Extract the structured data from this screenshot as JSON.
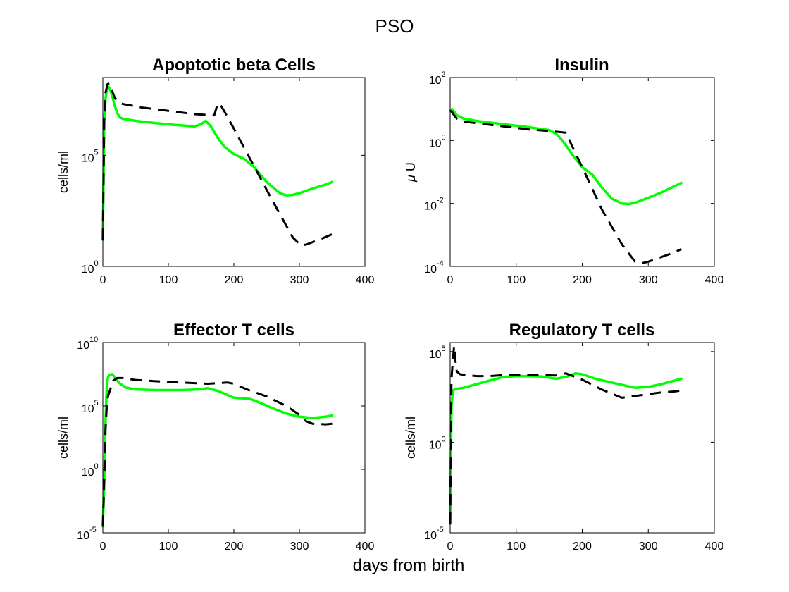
{
  "figure": {
    "title": "PSO",
    "xlabel": "days from birth"
  },
  "colors": {
    "fit": "#00ff00",
    "data": "#000000"
  },
  "chart_data": [
    {
      "type": "line",
      "title": "Apoptotic beta Cells",
      "ylabel": "cells/ml",
      "ylabel_prefix": "",
      "yscale": "log",
      "xlim": [
        0,
        400
      ],
      "ylim_exp": [
        0,
        8.5
      ],
      "xticks": [
        "0",
        "100",
        "200",
        "300",
        "400"
      ],
      "yticks": [
        {
          "base": "10",
          "exp": "0",
          "value_exp": 0
        },
        {
          "base": "10",
          "exp": "5",
          "value_exp": 5
        }
      ],
      "series": [
        {
          "style": "solid",
          "color": "#00ff00",
          "x": [
            0,
            2,
            4,
            6,
            8,
            10,
            12,
            15,
            18,
            22,
            26,
            30,
            50,
            80,
            110,
            140,
            150,
            157,
            165,
            175,
            185,
            200,
            215,
            230,
            250,
            270,
            280,
            290,
            300,
            320,
            340,
            350
          ],
          "y_exp": [
            1.2,
            6.5,
            7.5,
            8.0,
            8.1,
            8.05,
            7.9,
            7.6,
            7.25,
            6.9,
            6.7,
            6.65,
            6.55,
            6.45,
            6.37,
            6.3,
            6.4,
            6.55,
            6.3,
            5.8,
            5.4,
            5.05,
            4.85,
            4.5,
            3.8,
            3.3,
            3.2,
            3.22,
            3.3,
            3.5,
            3.68,
            3.8
          ]
        },
        {
          "style": "dashed",
          "color": "#000000",
          "x": [
            0,
            2,
            4,
            7,
            10,
            13,
            18,
            25,
            32,
            60,
            100,
            140,
            170,
            175,
            178,
            185,
            200,
            230,
            260,
            290,
            302,
            310,
            330,
            350
          ],
          "y_exp": [
            1.2,
            6.5,
            7.8,
            8.2,
            8.25,
            8.0,
            7.6,
            7.35,
            7.3,
            7.15,
            7.0,
            6.85,
            6.8,
            7.3,
            7.35,
            7.0,
            6.2,
            4.55,
            2.9,
            1.3,
            0.95,
            0.98,
            1.2,
            1.45
          ]
        }
      ]
    },
    {
      "type": "line",
      "title": "Insulin",
      "ylabel": "U",
      "ylabel_prefix": "μ",
      "yscale": "log",
      "xlim": [
        0,
        400
      ],
      "ylim_exp": [
        -4,
        2
      ],
      "xticks": [
        "0",
        "100",
        "200",
        "300",
        "400"
      ],
      "yticks": [
        {
          "base": "10",
          "exp": "-4",
          "value_exp": -4
        },
        {
          "base": "10",
          "exp": "-2",
          "value_exp": -2
        },
        {
          "base": "10",
          "exp": "0",
          "value_exp": 0
        },
        {
          "base": "10",
          "exp": "2",
          "value_exp": 2
        }
      ],
      "series": [
        {
          "style": "solid",
          "color": "#00ff00",
          "x": [
            0,
            3,
            6,
            10,
            20,
            40,
            80,
            120,
            150,
            160,
            170,
            185,
            200,
            215,
            230,
            245,
            260,
            270,
            280,
            300,
            320,
            340,
            350
          ],
          "y_exp": [
            0.95,
            1.0,
            0.92,
            0.8,
            0.7,
            0.62,
            0.52,
            0.42,
            0.33,
            0.22,
            0.0,
            -0.45,
            -0.85,
            -1.08,
            -1.5,
            -1.85,
            -2.0,
            -2.02,
            -1.98,
            -1.82,
            -1.65,
            -1.45,
            -1.35
          ]
        },
        {
          "style": "dashed",
          "color": "#000000",
          "x": [
            0,
            3,
            6,
            10,
            20,
            40,
            80,
            120,
            150,
            175,
            200,
            230,
            260,
            280,
            290,
            300,
            320,
            340,
            350
          ],
          "y_exp": [
            0.95,
            0.9,
            0.8,
            0.7,
            0.6,
            0.55,
            0.45,
            0.35,
            0.3,
            0.25,
            -0.85,
            -2.2,
            -3.3,
            -3.85,
            -3.9,
            -3.85,
            -3.7,
            -3.55,
            -3.45
          ]
        }
      ]
    },
    {
      "type": "line",
      "title": "Effector T cells",
      "ylabel": "cells/ml",
      "ylabel_prefix": "",
      "yscale": "log",
      "xlim": [
        0,
        400
      ],
      "ylim_exp": [
        -5,
        10
      ],
      "xticks": [
        "0",
        "100",
        "200",
        "300",
        "400"
      ],
      "yticks": [
        {
          "base": "10",
          "exp": "-5",
          "value_exp": -5
        },
        {
          "base": "10",
          "exp": "0",
          "value_exp": 0
        },
        {
          "base": "10",
          "exp": "5",
          "value_exp": 5
        },
        {
          "base": "10",
          "exp": "10",
          "value_exp": 10
        }
      ],
      "series": [
        {
          "style": "solid",
          "color": "#00ff00",
          "x": [
            0,
            2,
            4,
            6,
            8,
            10,
            14,
            18,
            25,
            35,
            50,
            80,
            120,
            145,
            160,
            175,
            200,
            225,
            240,
            260,
            280,
            300,
            320,
            340,
            350
          ],
          "y_exp": [
            -4.5,
            -1.0,
            3.5,
            6.6,
            7.3,
            7.45,
            7.5,
            7.3,
            6.8,
            6.45,
            6.3,
            6.25,
            6.25,
            6.3,
            6.4,
            6.2,
            5.65,
            5.55,
            5.25,
            4.8,
            4.4,
            4.15,
            4.05,
            4.15,
            4.25
          ]
        },
        {
          "style": "dashed",
          "color": "#000000",
          "x": [
            0,
            2,
            4,
            6,
            8,
            12,
            16,
            22,
            30,
            50,
            80,
            120,
            160,
            190,
            200,
            220,
            250,
            280,
            300,
            310,
            320,
            340,
            350
          ],
          "y_exp": [
            -4.5,
            -1.0,
            3.0,
            5.0,
            5.8,
            6.4,
            7.0,
            7.2,
            7.2,
            7.05,
            6.95,
            6.85,
            6.75,
            6.85,
            6.75,
            6.3,
            5.75,
            5.0,
            4.3,
            3.8,
            3.6,
            3.55,
            3.6
          ]
        }
      ]
    },
    {
      "type": "line",
      "title": "Regulatory T cells",
      "ylabel": "cells/ml",
      "ylabel_prefix": "",
      "yscale": "log",
      "xlim": [
        0,
        400
      ],
      "ylim_exp": [
        -5,
        5.5
      ],
      "xticks": [
        "0",
        "100",
        "200",
        "300",
        "400"
      ],
      "yticks": [
        {
          "base": "10",
          "exp": "-5",
          "value_exp": -5
        },
        {
          "base": "10",
          "exp": "0",
          "value_exp": 0
        },
        {
          "base": "10",
          "exp": "5",
          "value_exp": 5
        }
      ],
      "series": [
        {
          "style": "solid",
          "color": "#00ff00",
          "x": [
            0,
            2,
            4,
            6,
            10,
            20,
            40,
            60,
            80,
            100,
            120,
            140,
            160,
            175,
            190,
            200,
            220,
            250,
            280,
            300,
            320,
            340,
            350
          ],
          "y_exp": [
            -4.5,
            2.0,
            2.8,
            2.9,
            2.95,
            3.0,
            3.2,
            3.4,
            3.6,
            3.65,
            3.65,
            3.62,
            3.5,
            3.6,
            3.8,
            3.75,
            3.5,
            3.25,
            3.0,
            3.05,
            3.2,
            3.4,
            3.5
          ]
        },
        {
          "style": "dashed",
          "color": "#000000",
          "x": [
            0,
            2,
            4,
            6,
            8,
            10,
            15,
            25,
            40,
            60,
            80,
            100,
            120,
            140,
            160,
            175,
            200,
            230,
            260,
            280,
            300,
            320,
            340,
            350
          ],
          "y_exp": [
            -4.5,
            3.5,
            4.5,
            5.3,
            4.5,
            3.9,
            3.75,
            3.7,
            3.65,
            3.65,
            3.7,
            3.7,
            3.7,
            3.7,
            3.68,
            3.8,
            3.45,
            2.9,
            2.45,
            2.55,
            2.65,
            2.75,
            2.8,
            2.85
          ]
        }
      ]
    }
  ]
}
